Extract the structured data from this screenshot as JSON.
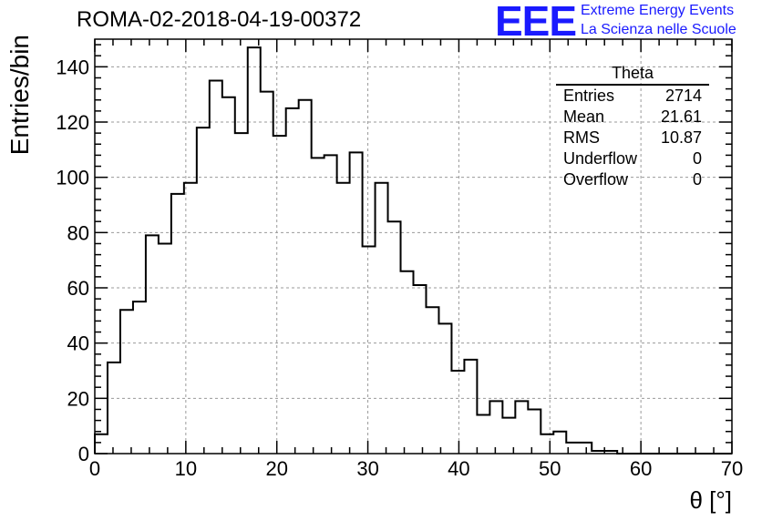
{
  "header": {
    "run_id": "ROMA-02-2018-04-19-00372",
    "logo_text": "EEE",
    "logo_line1": "Extreme Energy Events",
    "logo_line2": "La Scienza nelle Scuole"
  },
  "stats": {
    "title": "Theta",
    "rows": [
      {
        "label": "Entries",
        "value": "2714"
      },
      {
        "label": "Mean",
        "value": "21.61"
      },
      {
        "label": "RMS",
        "value": "10.87"
      },
      {
        "label": "Underflow",
        "value": "0"
      },
      {
        "label": "Overflow",
        "value": "0"
      }
    ]
  },
  "chart_data": {
    "type": "histogram",
    "title": "ROMA-02-2018-04-19-00372",
    "xlabel": "θ [°]",
    "ylabel": "Entries/bin",
    "xlim": [
      0,
      70
    ],
    "ylim": [
      0,
      150
    ],
    "bin_width": 1.4,
    "bin_edges_start": 0,
    "values": [
      7,
      33,
      52,
      55,
      79,
      76,
      94,
      98,
      118,
      135,
      129,
      116,
      147,
      131,
      115,
      125,
      128,
      107,
      108,
      98,
      109,
      75,
      98,
      84,
      66,
      61,
      53,
      47,
      30,
      34,
      14,
      19,
      13,
      19,
      16,
      7,
      8,
      4,
      4,
      1,
      1,
      0,
      0,
      0,
      0,
      0,
      0,
      0,
      0,
      0
    ],
    "xticks": [
      0,
      10,
      20,
      30,
      40,
      50,
      60,
      70
    ],
    "yticks": [
      0,
      20,
      40,
      60,
      80,
      100,
      120,
      140
    ],
    "grid": true,
    "colors": {
      "line": "#000000",
      "grid": "#9a9a9a",
      "logo": "#1a1aff"
    }
  }
}
